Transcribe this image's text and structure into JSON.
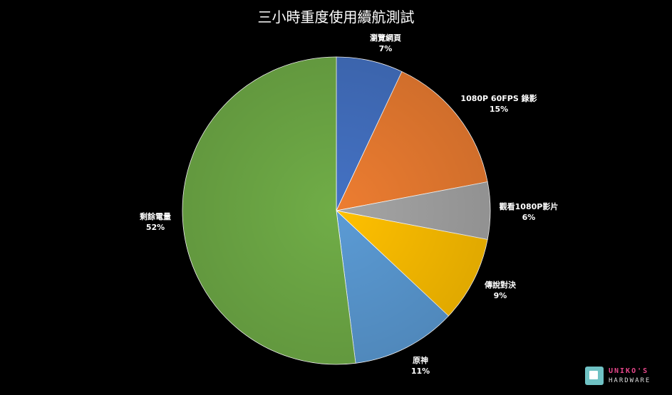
{
  "chart_data": {
    "type": "pie",
    "title": "三小時重度使用續航測試",
    "slices": [
      {
        "label": "瀏覽網頁",
        "value": 7,
        "pct_label": "7%",
        "color": "#4472c4"
      },
      {
        "label": "1080P 60FPS 錄影",
        "value": 15,
        "pct_label": "15%",
        "color": "#ed7d31"
      },
      {
        "label": "觀看1080P影片",
        "value": 6,
        "pct_label": "6%",
        "color": "#a5a5a5"
      },
      {
        "label": "傳說對決",
        "value": 9,
        "pct_label": "9%",
        "color": "#ffc000"
      },
      {
        "label": "原神",
        "value": 11,
        "pct_label": "11%",
        "color": "#5b9bd5"
      },
      {
        "label": "剩餘電量",
        "value": 52,
        "pct_label": "52%",
        "color": "#70ad47"
      }
    ]
  },
  "watermark": {
    "brand": "UNIKO'S",
    "sub": "HARDWARE"
  }
}
